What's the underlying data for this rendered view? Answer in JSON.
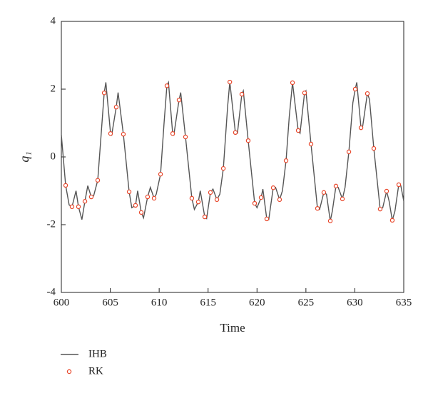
{
  "chart_data": {
    "type": "line",
    "xlabel": "Time",
    "ylabel": "q₁",
    "xlim": [
      600,
      635
    ],
    "ylim": [
      -4,
      4
    ],
    "xticks": [
      600,
      605,
      610,
      615,
      620,
      625,
      630,
      635
    ],
    "yticks": [
      -4,
      -2,
      0,
      2,
      4
    ],
    "legend": "bottom",
    "series": [
      {
        "name": "IHB",
        "type": "line",
        "color": "#555555",
        "x": [
          600.0,
          600.44,
          600.8,
          601.09,
          601.5,
          601.75,
          602.1,
          602.41,
          602.7,
          603.06,
          603.3,
          603.72,
          604.0,
          604.38,
          604.55,
          605.03,
          605.15,
          605.61,
          605.8,
          606.34,
          606.93,
          607.2,
          607.58,
          607.8,
          608.17,
          608.4,
          608.82,
          609.1,
          609.48,
          609.7,
          610.14,
          610.5,
          610.79,
          610.95,
          611.38,
          611.5,
          612.03,
          612.2,
          612.69,
          613.34,
          613.6,
          614.0,
          614.2,
          614.66,
          614.85,
          615.24,
          615.5,
          615.9,
          616.2,
          616.56,
          617.0,
          617.22,
          617.79,
          618.0,
          618.45,
          618.6,
          619.1,
          619.76,
          620.0,
          620.42,
          620.6,
          621.0,
          621.2,
          621.66,
          621.9,
          622.31,
          622.6,
          622.97,
          623.3,
          623.63,
          624.21,
          624.4,
          624.86,
          625.0,
          625.52,
          626.18,
          626.4,
          626.83,
          627.1,
          627.49,
          627.7,
          628.07,
          628.3,
          628.73,
          629.0,
          629.39,
          629.8,
          630.04,
          630.2,
          630.63,
          630.8,
          631.28,
          631.5,
          631.94,
          632.59,
          632.85,
          633.25,
          633.5,
          633.83,
          634.1,
          634.49,
          634.7,
          635.0
        ],
        "values": [
          0.65,
          -0.84,
          -1.42,
          -1.47,
          -1.0,
          -1.47,
          -1.85,
          -1.31,
          -0.85,
          -1.18,
          -1.15,
          -0.69,
          0.4,
          1.89,
          2.2,
          0.69,
          0.65,
          1.47,
          1.9,
          0.67,
          -1.03,
          -1.5,
          -1.43,
          -1.0,
          -1.64,
          -1.8,
          -1.18,
          -0.9,
          -1.22,
          -1.1,
          -0.51,
          1.0,
          2.1,
          2.2,
          0.69,
          0.65,
          1.68,
          1.9,
          0.59,
          -1.22,
          -1.55,
          -1.33,
          -1.0,
          -1.77,
          -1.82,
          -1.05,
          -0.95,
          -1.26,
          -1.1,
          -0.34,
          1.5,
          2.21,
          0.72,
          0.7,
          1.85,
          1.95,
          0.48,
          -1.37,
          -1.5,
          -1.2,
          -0.95,
          -1.83,
          -1.85,
          -0.91,
          -0.9,
          -1.26,
          -1.0,
          -0.11,
          1.2,
          2.19,
          0.78,
          0.7,
          1.89,
          1.95,
          0.38,
          -1.52,
          -1.55,
          -1.05,
          -1.1,
          -1.89,
          -1.6,
          -0.86,
          -0.9,
          -1.24,
          -0.9,
          0.15,
          1.6,
          2.0,
          2.2,
          0.86,
          0.9,
          1.87,
          1.7,
          0.25,
          -1.54,
          -1.5,
          -1.01,
          -1.3,
          -1.87,
          -1.6,
          -0.82,
          -0.85,
          -1.3
        ]
      },
      {
        "name": "RK",
        "type": "scatter",
        "color": "#e8462a",
        "x": [
          600.44,
          601.09,
          601.75,
          602.41,
          603.06,
          603.72,
          604.38,
          605.03,
          605.61,
          606.34,
          606.93,
          607.58,
          608.17,
          608.82,
          609.48,
          610.14,
          610.79,
          611.38,
          612.03,
          612.69,
          613.34,
          614.0,
          614.66,
          615.24,
          615.9,
          616.56,
          617.22,
          617.79,
          618.45,
          619.1,
          619.76,
          620.42,
          621.0,
          621.66,
          622.31,
          622.97,
          623.63,
          624.21,
          624.86,
          625.52,
          626.18,
          626.83,
          627.49,
          628.07,
          628.73,
          629.39,
          630.04,
          630.63,
          631.28,
          631.94,
          632.59,
          633.25,
          633.83,
          634.49
        ],
        "values": [
          -0.84,
          -1.47,
          -1.47,
          -1.31,
          -1.18,
          -0.69,
          1.89,
          0.69,
          1.47,
          0.67,
          -1.03,
          -1.43,
          -1.64,
          -1.18,
          -1.22,
          -0.51,
          2.1,
          0.69,
          1.68,
          0.59,
          -1.22,
          -1.33,
          -1.77,
          -1.05,
          -1.26,
          -0.34,
          2.21,
          0.72,
          1.85,
          0.48,
          -1.37,
          -1.2,
          -1.83,
          -0.91,
          -1.26,
          -0.11,
          2.19,
          0.78,
          1.89,
          0.38,
          -1.52,
          -1.05,
          -1.89,
          -0.86,
          -1.24,
          0.15,
          2.0,
          0.86,
          1.87,
          0.25,
          -1.54,
          -1.01,
          -1.87,
          -0.82
        ]
      }
    ]
  }
}
